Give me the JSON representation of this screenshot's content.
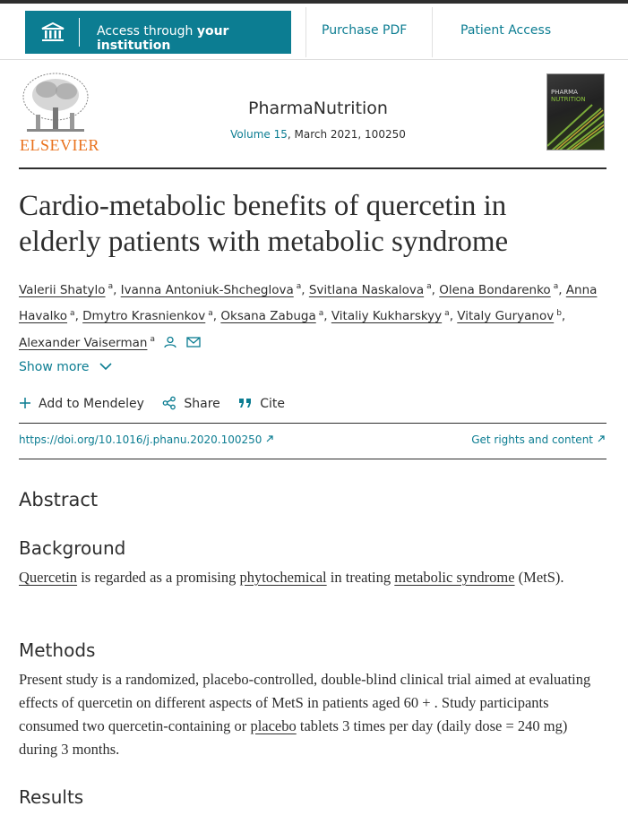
{
  "nav": {
    "access_prefix": "Access through",
    "access_bold": "your institution",
    "purchase": "Purchase PDF",
    "patient": "Patient Access"
  },
  "journal": {
    "publisher": "ELSEVIER",
    "name": "PharmaNutrition",
    "volume": "Volume 15",
    "issue_info": ", March 2021, 100250",
    "cover_title": [
      "PHARMA",
      "NUTRITION"
    ]
  },
  "article": {
    "title": "Cardio-metabolic benefits of quercetin in elderly patients with metabolic syndrome",
    "authors": [
      {
        "name": "Valerii Shatylo",
        "affiliation": "a",
        "separator": ","
      },
      {
        "name": "Ivanna Antoniuk-Shcheglova",
        "affiliation": "a",
        "separator": ","
      },
      {
        "name": "Svitlana Naskalova",
        "affiliation": "a",
        "separator": ","
      },
      {
        "name": "Olena Bondarenko",
        "affiliation": "a",
        "separator": ","
      },
      {
        "name": "Anna Havalko",
        "affiliation": "a",
        "separator": ","
      },
      {
        "name": "Dmytro Krasnienkov",
        "affiliation": "a",
        "separator": ","
      },
      {
        "name": "Oksana Zabuga",
        "affiliation": "a",
        "separator": ","
      },
      {
        "name": "Vitaliy Kukharskyy",
        "affiliation": "a",
        "separator": ","
      },
      {
        "name": "Vitaly Guryanov",
        "affiliation": "b",
        "separator": ","
      },
      {
        "name": "Alexander Vaiserman",
        "affiliation": "a"
      }
    ],
    "show_more": "Show more",
    "actions": [
      "Add to Mendeley",
      "Share",
      "Cite"
    ],
    "doi": "https://doi.org/10.1016/j.phanu.2020.100250",
    "rights": "Get rights and content"
  },
  "abstract": {
    "heading": "Abstract",
    "sections": [
      {
        "heading": "Background",
        "paragraph": [
          {
            "text": "Quercetin",
            "link": true
          },
          {
            "text": " is regarded as a promising ",
            "link": false
          },
          {
            "text": "phytochemical",
            "link": true
          },
          {
            "text": " in treating ",
            "link": false
          },
          {
            "text": "metabolic syndrome",
            "link": true
          },
          {
            "text": " (MetS).",
            "link": false
          }
        ]
      },
      {
        "heading": "Methods",
        "paragraph": [
          {
            "text": "Present study is a randomized, placebo-controlled, double-blind clinical trial aimed at evaluating effects of quercetin on different aspects of MetS in patients aged 60 + . Study participants consumed two quercetin-containing or ",
            "link": false
          },
          {
            "text": "placebo",
            "link": true
          },
          {
            "text": " tablets 3 times per day (daily dose = 240 mg) during 3 months.",
            "link": false
          }
        ]
      },
      {
        "heading": "Results"
      }
    ]
  }
}
